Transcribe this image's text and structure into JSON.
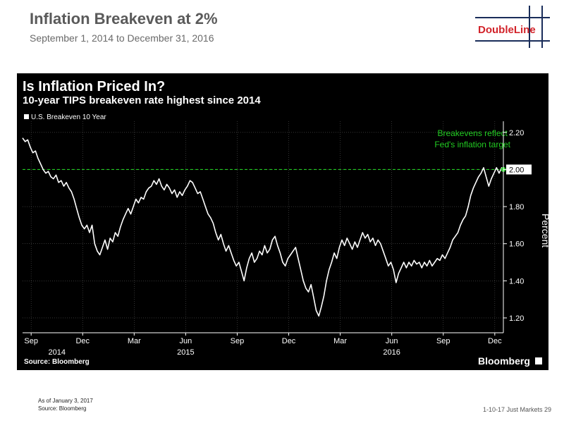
{
  "slide": {
    "title": "Inflation Breakeven at 2%",
    "subtitle": "September 1, 2014 to December 31, 2016",
    "logo_text": "DoubleLine",
    "footnote_date": "As of January 3, 2017",
    "footnote_source": "Source: Bloomberg",
    "page_note": "1-10-17 Just Markets  29"
  },
  "chart_data": {
    "type": "line",
    "title": "Is Inflation Priced In?",
    "subtitle": "10-year TIPS breakeven rate highest since 2014",
    "legend": "U.S. Breakeven 10 Year",
    "ylabel": "Percent",
    "ylim": [
      1.12,
      2.26
    ],
    "yticks": [
      1.2,
      1.4,
      1.6,
      1.8,
      2.0,
      2.2
    ],
    "ytick_labels": [
      "1.20",
      "1.40",
      "1.60",
      "1.80",
      "2.00",
      "2.20"
    ],
    "last_value_label": "2.00",
    "xlim": [
      0,
      28
    ],
    "x_unit": "months since Sep 1, 2014",
    "x_month_ticks": [
      {
        "x": 0.5,
        "label": "Sep"
      },
      {
        "x": 3.5,
        "label": "Dec"
      },
      {
        "x": 6.5,
        "label": "Mar"
      },
      {
        "x": 9.5,
        "label": "Jun"
      },
      {
        "x": 12.5,
        "label": "Sep"
      },
      {
        "x": 15.5,
        "label": "Dec"
      },
      {
        "x": 18.5,
        "label": "Mar"
      },
      {
        "x": 21.5,
        "label": "Jun"
      },
      {
        "x": 24.5,
        "label": "Sep"
      },
      {
        "x": 27.5,
        "label": "Dec"
      }
    ],
    "x_year_labels": [
      {
        "x": 2,
        "label": "2014"
      },
      {
        "x": 9.5,
        "label": "2015"
      },
      {
        "x": 21.5,
        "label": "2016"
      }
    ],
    "reference_line": {
      "y": 2.0,
      "color": "#22cc22"
    },
    "annotation": {
      "lines": [
        "Breakevens reflect",
        "Fed's inflation target"
      ],
      "x": 26.2,
      "y": 2.18
    },
    "series": [
      {
        "name": "U.S. Breakeven 10 Year",
        "color": "#ffffff",
        "points": [
          [
            0.0,
            2.17
          ],
          [
            0.15,
            2.15
          ],
          [
            0.3,
            2.16
          ],
          [
            0.45,
            2.12
          ],
          [
            0.6,
            2.09
          ],
          [
            0.75,
            2.1
          ],
          [
            0.9,
            2.06
          ],
          [
            1.05,
            2.03
          ],
          [
            1.2,
            2.0
          ],
          [
            1.35,
            1.98
          ],
          [
            1.5,
            1.99
          ],
          [
            1.65,
            1.96
          ],
          [
            1.8,
            1.95
          ],
          [
            1.95,
            1.97
          ],
          [
            2.1,
            1.93
          ],
          [
            2.25,
            1.94
          ],
          [
            2.4,
            1.91
          ],
          [
            2.55,
            1.93
          ],
          [
            2.7,
            1.9
          ],
          [
            2.85,
            1.88
          ],
          [
            3.0,
            1.84
          ],
          [
            3.15,
            1.79
          ],
          [
            3.3,
            1.74
          ],
          [
            3.45,
            1.7
          ],
          [
            3.6,
            1.68
          ],
          [
            3.75,
            1.7
          ],
          [
            3.9,
            1.66
          ],
          [
            4.05,
            1.7
          ],
          [
            4.2,
            1.6
          ],
          [
            4.35,
            1.56
          ],
          [
            4.5,
            1.54
          ],
          [
            4.65,
            1.58
          ],
          [
            4.8,
            1.62
          ],
          [
            4.95,
            1.57
          ],
          [
            5.1,
            1.63
          ],
          [
            5.25,
            1.61
          ],
          [
            5.4,
            1.66
          ],
          [
            5.55,
            1.64
          ],
          [
            5.7,
            1.69
          ],
          [
            5.85,
            1.73
          ],
          [
            6.0,
            1.76
          ],
          [
            6.15,
            1.79
          ],
          [
            6.3,
            1.76
          ],
          [
            6.45,
            1.8
          ],
          [
            6.6,
            1.84
          ],
          [
            6.75,
            1.82
          ],
          [
            6.9,
            1.85
          ],
          [
            7.05,
            1.84
          ],
          [
            7.2,
            1.88
          ],
          [
            7.35,
            1.9
          ],
          [
            7.5,
            1.91
          ],
          [
            7.65,
            1.94
          ],
          [
            7.8,
            1.92
          ],
          [
            7.95,
            1.95
          ],
          [
            8.1,
            1.91
          ],
          [
            8.25,
            1.89
          ],
          [
            8.4,
            1.92
          ],
          [
            8.55,
            1.9
          ],
          [
            8.7,
            1.87
          ],
          [
            8.85,
            1.89
          ],
          [
            9.0,
            1.85
          ],
          [
            9.15,
            1.88
          ],
          [
            9.3,
            1.86
          ],
          [
            9.45,
            1.89
          ],
          [
            9.6,
            1.91
          ],
          [
            9.75,
            1.94
          ],
          [
            9.9,
            1.93
          ],
          [
            10.05,
            1.9
          ],
          [
            10.2,
            1.87
          ],
          [
            10.35,
            1.88
          ],
          [
            10.5,
            1.84
          ],
          [
            10.65,
            1.8
          ],
          [
            10.8,
            1.76
          ],
          [
            10.95,
            1.74
          ],
          [
            11.1,
            1.71
          ],
          [
            11.25,
            1.66
          ],
          [
            11.4,
            1.62
          ],
          [
            11.55,
            1.65
          ],
          [
            11.7,
            1.6
          ],
          [
            11.85,
            1.56
          ],
          [
            12.0,
            1.59
          ],
          [
            12.15,
            1.55
          ],
          [
            12.3,
            1.51
          ],
          [
            12.45,
            1.48
          ],
          [
            12.6,
            1.5
          ],
          [
            12.75,
            1.45
          ],
          [
            12.9,
            1.4
          ],
          [
            13.05,
            1.47
          ],
          [
            13.2,
            1.52
          ],
          [
            13.35,
            1.55
          ],
          [
            13.5,
            1.5
          ],
          [
            13.65,
            1.52
          ],
          [
            13.8,
            1.56
          ],
          [
            13.95,
            1.54
          ],
          [
            14.1,
            1.59
          ],
          [
            14.25,
            1.55
          ],
          [
            14.4,
            1.57
          ],
          [
            14.55,
            1.62
          ],
          [
            14.7,
            1.64
          ],
          [
            14.85,
            1.59
          ],
          [
            15.0,
            1.55
          ],
          [
            15.15,
            1.5
          ],
          [
            15.3,
            1.48
          ],
          [
            15.45,
            1.52
          ],
          [
            15.6,
            1.54
          ],
          [
            15.75,
            1.56
          ],
          [
            15.9,
            1.58
          ],
          [
            16.05,
            1.52
          ],
          [
            16.2,
            1.46
          ],
          [
            16.35,
            1.4
          ],
          [
            16.5,
            1.36
          ],
          [
            16.65,
            1.34
          ],
          [
            16.8,
            1.38
          ],
          [
            16.95,
            1.31
          ],
          [
            17.1,
            1.24
          ],
          [
            17.25,
            1.21
          ],
          [
            17.4,
            1.26
          ],
          [
            17.55,
            1.32
          ],
          [
            17.7,
            1.4
          ],
          [
            17.85,
            1.46
          ],
          [
            18.0,
            1.5
          ],
          [
            18.15,
            1.55
          ],
          [
            18.3,
            1.52
          ],
          [
            18.45,
            1.58
          ],
          [
            18.6,
            1.62
          ],
          [
            18.75,
            1.59
          ],
          [
            18.9,
            1.63
          ],
          [
            19.05,
            1.6
          ],
          [
            19.2,
            1.57
          ],
          [
            19.35,
            1.61
          ],
          [
            19.5,
            1.58
          ],
          [
            19.65,
            1.62
          ],
          [
            19.8,
            1.66
          ],
          [
            19.95,
            1.63
          ],
          [
            20.1,
            1.65
          ],
          [
            20.25,
            1.61
          ],
          [
            20.4,
            1.63
          ],
          [
            20.55,
            1.59
          ],
          [
            20.7,
            1.62
          ],
          [
            20.85,
            1.6
          ],
          [
            21.0,
            1.56
          ],
          [
            21.15,
            1.52
          ],
          [
            21.3,
            1.48
          ],
          [
            21.45,
            1.5
          ],
          [
            21.6,
            1.46
          ],
          [
            21.75,
            1.39
          ],
          [
            21.9,
            1.44
          ],
          [
            22.05,
            1.47
          ],
          [
            22.2,
            1.5
          ],
          [
            22.35,
            1.47
          ],
          [
            22.5,
            1.5
          ],
          [
            22.65,
            1.48
          ],
          [
            22.8,
            1.51
          ],
          [
            22.95,
            1.49
          ],
          [
            23.1,
            1.5
          ],
          [
            23.25,
            1.47
          ],
          [
            23.4,
            1.5
          ],
          [
            23.55,
            1.48
          ],
          [
            23.7,
            1.51
          ],
          [
            23.85,
            1.48
          ],
          [
            24.0,
            1.5
          ],
          [
            24.15,
            1.52
          ],
          [
            24.3,
            1.51
          ],
          [
            24.45,
            1.54
          ],
          [
            24.6,
            1.52
          ],
          [
            24.75,
            1.55
          ],
          [
            24.9,
            1.58
          ],
          [
            25.05,
            1.62
          ],
          [
            25.2,
            1.64
          ],
          [
            25.35,
            1.66
          ],
          [
            25.5,
            1.7
          ],
          [
            25.65,
            1.73
          ],
          [
            25.8,
            1.75
          ],
          [
            25.95,
            1.8
          ],
          [
            26.1,
            1.86
          ],
          [
            26.25,
            1.9
          ],
          [
            26.4,
            1.93
          ],
          [
            26.55,
            1.96
          ],
          [
            26.7,
            1.98
          ],
          [
            26.85,
            2.01
          ],
          [
            27.0,
            1.96
          ],
          [
            27.15,
            1.91
          ],
          [
            27.3,
            1.95
          ],
          [
            27.45,
            1.98
          ],
          [
            27.6,
            2.01
          ],
          [
            27.75,
            1.98
          ],
          [
            27.9,
            2.01
          ],
          [
            28.0,
            2.0
          ]
        ]
      }
    ]
  }
}
